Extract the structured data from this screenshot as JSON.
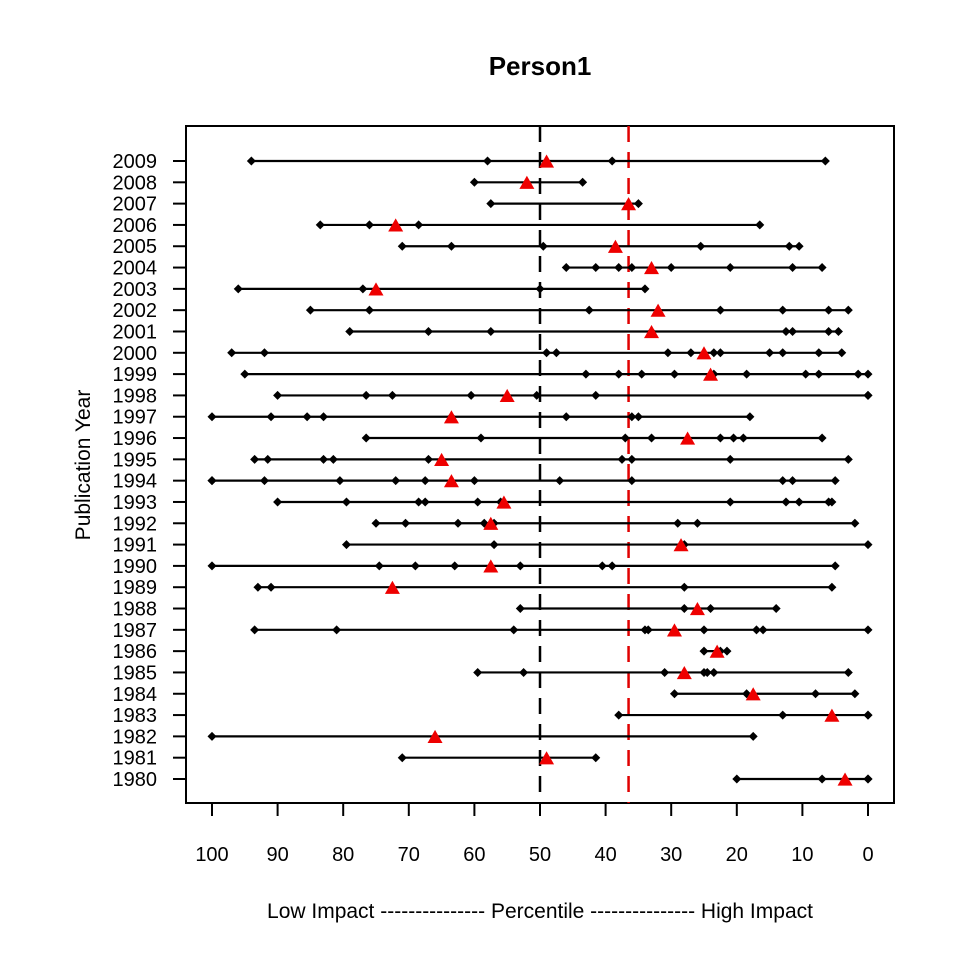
{
  "chart_data": {
    "type": "scatter",
    "title": "Person1",
    "xlabel": "Low Impact --------------- Percentile --------------- High Impact",
    "ylabel": "Publication Year",
    "xlim": [
      100,
      0
    ],
    "x_reversed": true,
    "x_ticks": [
      100,
      90,
      80,
      70,
      60,
      50,
      40,
      30,
      20,
      10,
      0
    ],
    "years": [
      1980,
      1981,
      1982,
      1983,
      1984,
      1985,
      1986,
      1987,
      1988,
      1989,
      1990,
      1991,
      1992,
      1993,
      1994,
      1995,
      1996,
      1997,
      1998,
      1999,
      2000,
      2001,
      2002,
      2003,
      2004,
      2005,
      2006,
      2007,
      2008,
      2009
    ],
    "reference_lines": [
      {
        "x": 50,
        "style": "dashed",
        "color": "#000000"
      },
      {
        "x": 36.5,
        "style": "dashed",
        "color": "#e00000"
      }
    ],
    "series": [
      {
        "marker": "diamond",
        "color": "#000000",
        "points": {
          "1980": [
            20,
            7,
            0,
            0
          ],
          "1981": [
            71,
            41.5
          ],
          "1982": [
            100,
            17.5
          ],
          "1983": [
            38,
            13,
            0,
            0
          ],
          "1984": [
            29.5,
            18.5,
            8,
            2
          ],
          "1985": [
            59.5,
            52.5,
            31,
            25,
            24.5,
            23.5,
            3
          ],
          "1986": [
            25,
            22.5,
            21.5
          ],
          "1987": [
            93.5,
            81,
            54,
            34,
            33.5,
            25,
            17,
            16,
            0
          ],
          "1988": [
            53,
            28,
            24,
            14
          ],
          "1989": [
            93,
            91,
            28,
            5.5
          ],
          "1990": [
            100,
            74.5,
            69,
            63,
            53,
            40.5,
            39,
            5
          ],
          "1991": [
            79.5,
            57,
            28,
            0
          ],
          "1992": [
            75,
            70.5,
            62.5,
            58.5,
            57,
            29,
            26,
            2
          ],
          "1993": [
            90,
            79.5,
            68.5,
            67.5,
            59.5,
            56,
            21,
            12.5,
            10.5,
            6,
            5.5
          ],
          "1994": [
            100,
            100,
            92,
            80.5,
            72,
            67.5,
            60,
            47,
            36,
            13,
            11.5,
            5
          ],
          "1995": [
            93.5,
            91.5,
            83,
            81.5,
            67,
            37.5,
            36,
            21,
            3
          ],
          "1996": [
            76.5,
            59,
            37,
            33,
            22.5,
            20.5,
            19,
            7
          ],
          "1997": [
            100,
            91,
            85.5,
            83,
            63.5,
            46,
            36,
            35,
            18
          ],
          "1998": [
            90,
            76.5,
            72.5,
            60.5,
            50.5,
            41.5,
            0,
            0
          ],
          "1999": [
            95,
            43,
            38,
            34.5,
            29.5,
            23.5,
            18.5,
            9.5,
            7.5,
            1.5,
            0
          ],
          "2000": [
            97,
            92,
            49,
            47.5,
            30.5,
            27,
            23.5,
            22.5,
            15,
            13,
            7.5,
            4
          ],
          "2001": [
            79,
            67,
            57.5,
            33,
            12.5,
            11.5,
            6,
            4.5
          ],
          "2002": [
            85,
            76,
            42.5,
            22.5,
            13,
            6,
            3
          ],
          "2003": [
            96,
            77,
            50,
            34
          ],
          "2004": [
            46,
            41.5,
            38,
            36,
            30,
            21,
            11.5,
            7
          ],
          "2005": [
            71,
            63.5,
            49.5,
            25.5,
            12,
            10.5
          ],
          "2006": [
            83.5,
            76,
            68.5,
            16.5
          ],
          "2007": [
            57.5,
            35
          ],
          "2008": [
            60,
            43.5
          ],
          "2009": [
            94,
            58,
            39,
            6.5
          ]
        }
      },
      {
        "marker": "triangle",
        "color": "#ee0000",
        "points": {
          "1980": 3.5,
          "1981": 49,
          "1982": 66,
          "1983": 5.5,
          "1984": 17.5,
          "1985": 28,
          "1986": 23,
          "1987": 29.5,
          "1988": 26,
          "1989": 72.5,
          "1990": 57.5,
          "1991": 28.5,
          "1992": 57.5,
          "1993": 55.5,
          "1994": 63.5,
          "1995": 65,
          "1996": 27.5,
          "1997": 63.5,
          "1998": 55,
          "1999": 24,
          "2000": 25,
          "2001": 33,
          "2002": 32,
          "2003": 75,
          "2004": 33,
          "2005": 38.5,
          "2006": 72,
          "2007": 36.5,
          "2008": 52,
          "2009": 49
        }
      }
    ]
  }
}
